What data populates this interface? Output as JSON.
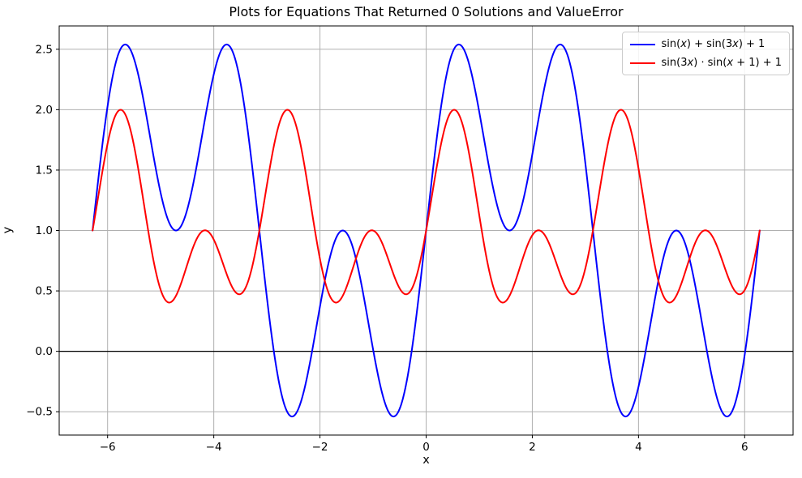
{
  "chart_data": {
    "type": "line",
    "title": "Plots for Equations That Returned 0 Solutions and ValueError",
    "xlabel": "x",
    "ylabel": "y",
    "xlim": [
      -6.912,
      6.912
    ],
    "ylim": [
      -0.693,
      2.693
    ],
    "x_range": [
      -6.2832,
      6.2832
    ],
    "samples": 800,
    "xticks": [
      -6,
      -4,
      -2,
      0,
      2,
      4,
      6
    ],
    "xtick_labels": [
      "−6",
      "−4",
      "−2",
      "0",
      "2",
      "4",
      "6"
    ],
    "yticks": [
      -0.5,
      0.0,
      0.5,
      1.0,
      1.5,
      2.0,
      2.5
    ],
    "ytick_labels": [
      "−0.5",
      "0.0",
      "0.5",
      "1.0",
      "1.5",
      "2.0",
      "2.5"
    ],
    "grid": true,
    "grid_color": "#b0b0b0",
    "axhline": {
      "y": 0,
      "color": "#000000"
    },
    "background": "#ffffff",
    "spine_color": "#000000",
    "legend": {
      "position": "upper right",
      "border_color": "#cccccc"
    },
    "series": [
      {
        "label": "sin(x) + sin(3x) + 1",
        "formula": "sin(x) + sin(3*x) + 1",
        "color": "#0000ff",
        "linewidth": 2
      },
      {
        "label": "sin(3x) ⋅ sin(x + 1) + 1",
        "formula": "sin(3*x) * sin(x + 1) + 1",
        "color": "#ff0000",
        "linewidth": 2
      }
    ]
  }
}
